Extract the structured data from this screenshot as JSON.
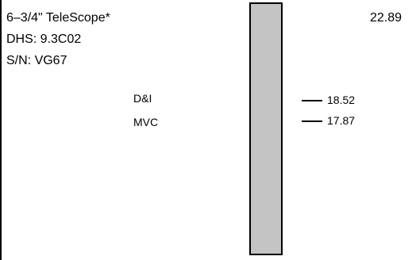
{
  "tool": {
    "name": "6–3/4\" TeleScope*",
    "dhs": "DHS: 9.3C02",
    "sn": "S/N: VG67",
    "top_value": "22.89"
  },
  "markers": [
    {
      "label": "D&I",
      "value": "18.52"
    },
    {
      "label": "MVC",
      "value": "17.87"
    }
  ],
  "colors": {
    "bar_fill": "#c4c4c4",
    "outline": "#000000"
  }
}
